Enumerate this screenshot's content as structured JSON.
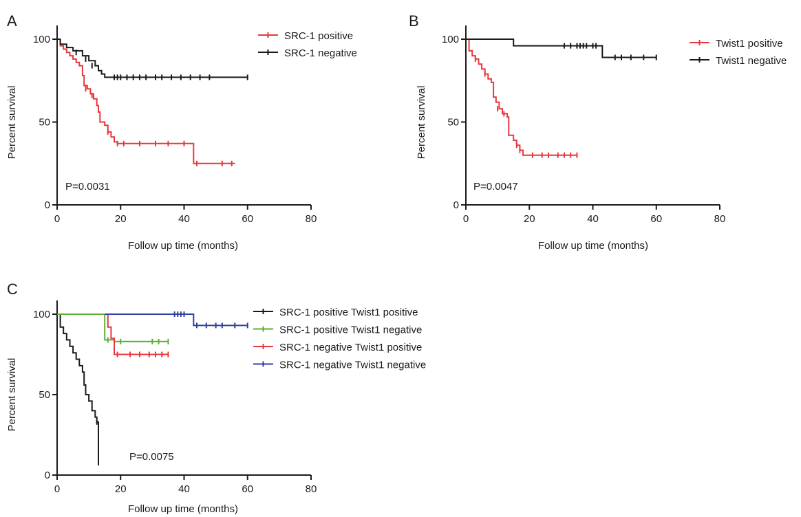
{
  "chart_data": [
    {
      "panel": "A",
      "type": "line",
      "subtype": "kaplan-meier",
      "xlabel": "Follow up time (months)",
      "ylabel": "Percent survival",
      "xlim": [
        0,
        80
      ],
      "ylim": [
        0,
        100
      ],
      "xticks": [
        0,
        20,
        40,
        60,
        80
      ],
      "yticks": [
        0,
        50,
        100
      ],
      "legend_position": "top-right",
      "annotation": "P=0.0031",
      "series": [
        {
          "name": "SRC-1 positive",
          "color": "#e8373c",
          "steps": [
            [
              0,
              100
            ],
            [
              1,
              96
            ],
            [
              2,
              94
            ],
            [
              3,
              92
            ],
            [
              4,
              90
            ],
            [
              5,
              88
            ],
            [
              6,
              86
            ],
            [
              7,
              84
            ],
            [
              8,
              78
            ],
            [
              8.5,
              72
            ],
            [
              9.5,
              70
            ],
            [
              10.5,
              67
            ],
            [
              11.5,
              64
            ],
            [
              12.5,
              60
            ],
            [
              13,
              56
            ],
            [
              13.5,
              50
            ],
            [
              15,
              48
            ],
            [
              16,
              44
            ],
            [
              17,
              41
            ],
            [
              18,
              38
            ],
            [
              19,
              37
            ],
            [
              43,
              37
            ],
            [
              43,
              25
            ],
            [
              56,
              25
            ]
          ],
          "censored": [
            [
              9,
              70
            ],
            [
              11,
              66
            ],
            [
              16,
              44
            ],
            [
              19,
              37
            ],
            [
              21,
              37
            ],
            [
              26,
              37
            ],
            [
              31,
              37
            ],
            [
              35,
              37
            ],
            [
              40,
              37
            ],
            [
              44,
              25
            ],
            [
              52,
              25
            ],
            [
              55,
              25
            ]
          ]
        },
        {
          "name": "SRC-1 negative",
          "color": "#1a1a1a",
          "steps": [
            [
              0,
              100
            ],
            [
              1,
              97
            ],
            [
              3,
              95
            ],
            [
              5,
              93
            ],
            [
              8,
              90
            ],
            [
              10,
              87
            ],
            [
              12,
              84
            ],
            [
              13,
              81
            ],
            [
              14,
              79
            ],
            [
              15,
              77
            ],
            [
              60,
              77
            ]
          ],
          "censored": [
            [
              6,
              92
            ],
            [
              9,
              88
            ],
            [
              11,
              84
            ],
            [
              18,
              77
            ],
            [
              19,
              77
            ],
            [
              20,
              77
            ],
            [
              22,
              77
            ],
            [
              24,
              77
            ],
            [
              26,
              77
            ],
            [
              28,
              77
            ],
            [
              31,
              77
            ],
            [
              33,
              77
            ],
            [
              36,
              77
            ],
            [
              39,
              77
            ],
            [
              42,
              77
            ],
            [
              45,
              77
            ],
            [
              48,
              77
            ],
            [
              60,
              77
            ]
          ]
        }
      ]
    },
    {
      "panel": "B",
      "type": "line",
      "subtype": "kaplan-meier",
      "xlabel": "Follow up time (months)",
      "ylabel": "Percent survival",
      "xlim": [
        0,
        80
      ],
      "ylim": [
        0,
        100
      ],
      "xticks": [
        0,
        20,
        40,
        60,
        80
      ],
      "yticks": [
        0,
        50,
        100
      ],
      "legend_position": "top-right",
      "annotation": "P=0.0047",
      "series": [
        {
          "name": "Twist1 positive",
          "color": "#e8373c",
          "steps": [
            [
              0,
              100
            ],
            [
              1,
              93
            ],
            [
              2,
              90
            ],
            [
              3,
              88
            ],
            [
              4,
              85
            ],
            [
              5,
              82
            ],
            [
              6,
              79
            ],
            [
              7,
              76
            ],
            [
              8,
              74
            ],
            [
              8.7,
              65
            ],
            [
              9.5,
              62
            ],
            [
              10.5,
              58
            ],
            [
              11.5,
              55
            ],
            [
              13,
              53
            ],
            [
              13.5,
              42
            ],
            [
              15,
              39
            ],
            [
              16,
              36
            ],
            [
              17,
              33
            ],
            [
              18,
              30
            ],
            [
              35,
              30
            ]
          ],
          "censored": [
            [
              3,
              88
            ],
            [
              6,
              79
            ],
            [
              10,
              58
            ],
            [
              12,
              55
            ],
            [
              16,
              36
            ],
            [
              17,
              33
            ],
            [
              21,
              30
            ],
            [
              24,
              30
            ],
            [
              26,
              30
            ],
            [
              29,
              30
            ],
            [
              31,
              30
            ],
            [
              33,
              30
            ],
            [
              35,
              30
            ]
          ]
        },
        {
          "name": "Twist1 negative",
          "color": "#1a1a1a",
          "steps": [
            [
              0,
              100
            ],
            [
              15,
              100
            ],
            [
              15,
              96
            ],
            [
              43,
              96
            ],
            [
              43,
              89
            ],
            [
              60,
              89
            ]
          ],
          "censored": [
            [
              31,
              96
            ],
            [
              33,
              96
            ],
            [
              35,
              96
            ],
            [
              36,
              96
            ],
            [
              37,
              96
            ],
            [
              38,
              96
            ],
            [
              40,
              96
            ],
            [
              41,
              96
            ],
            [
              47,
              89
            ],
            [
              49,
              89
            ],
            [
              52,
              89
            ],
            [
              56,
              89
            ],
            [
              60,
              89
            ]
          ]
        }
      ]
    },
    {
      "panel": "C",
      "type": "line",
      "subtype": "kaplan-meier",
      "xlabel": "Follow up time (months)",
      "ylabel": "Percent survival",
      "xlim": [
        0,
        80
      ],
      "ylim": [
        0,
        100
      ],
      "xticks": [
        0,
        20,
        40,
        60,
        80
      ],
      "yticks": [
        0,
        50,
        100
      ],
      "legend_position": "top-right",
      "annotation": "P=0.0075",
      "series": [
        {
          "name": "SRC-1 positive Twist1 positive",
          "color": "#1a1a1a",
          "steps": [
            [
              0,
              100
            ],
            [
              1,
              92
            ],
            [
              2,
              88
            ],
            [
              3,
              84
            ],
            [
              4,
              80
            ],
            [
              5,
              76
            ],
            [
              6,
              72
            ],
            [
              7,
              68
            ],
            [
              8,
              64
            ],
            [
              8.5,
              56
            ],
            [
              9,
              50
            ],
            [
              10,
              46
            ],
            [
              11,
              40
            ],
            [
              12,
              36
            ],
            [
              12.5,
              33
            ],
            [
              13,
              33
            ],
            [
              13,
              6
            ]
          ],
          "censored": [
            [
              12.5,
              33
            ]
          ]
        },
        {
          "name": "SRC-1 positive Twist1 negative",
          "color": "#5cb032",
          "steps": [
            [
              0,
              100
            ],
            [
              15,
              100
            ],
            [
              15,
              84
            ],
            [
              18,
              84
            ],
            [
              18,
              83
            ],
            [
              35,
              83
            ]
          ],
          "censored": [
            [
              16,
              84
            ],
            [
              20,
              83
            ],
            [
              30,
              83
            ],
            [
              32,
              83
            ],
            [
              35,
              83
            ]
          ]
        },
        {
          "name": "SRC-1 negative Twist1 positive",
          "color": "#e8373c",
          "steps": [
            [
              15,
              100
            ],
            [
              16,
              92
            ],
            [
              17,
              85
            ],
            [
              18,
              75
            ],
            [
              35,
              75
            ]
          ],
          "censored": [
            [
              19,
              75
            ],
            [
              23,
              75
            ],
            [
              26,
              75
            ],
            [
              29,
              75
            ],
            [
              31,
              75
            ],
            [
              33,
              75
            ],
            [
              35,
              75
            ]
          ]
        },
        {
          "name": "SRC-1 negative Twist1 negative",
          "color": "#2e3f9e",
          "steps": [
            [
              15,
              100
            ],
            [
              43,
              100
            ],
            [
              43,
              93
            ],
            [
              60,
              93
            ]
          ],
          "censored": [
            [
              37,
              100
            ],
            [
              38,
              100
            ],
            [
              39,
              100
            ],
            [
              40,
              100
            ],
            [
              44,
              93
            ],
            [
              47,
              93
            ],
            [
              50,
              93
            ],
            [
              52,
              93
            ],
            [
              56,
              93
            ],
            [
              60,
              93
            ]
          ]
        }
      ]
    }
  ]
}
